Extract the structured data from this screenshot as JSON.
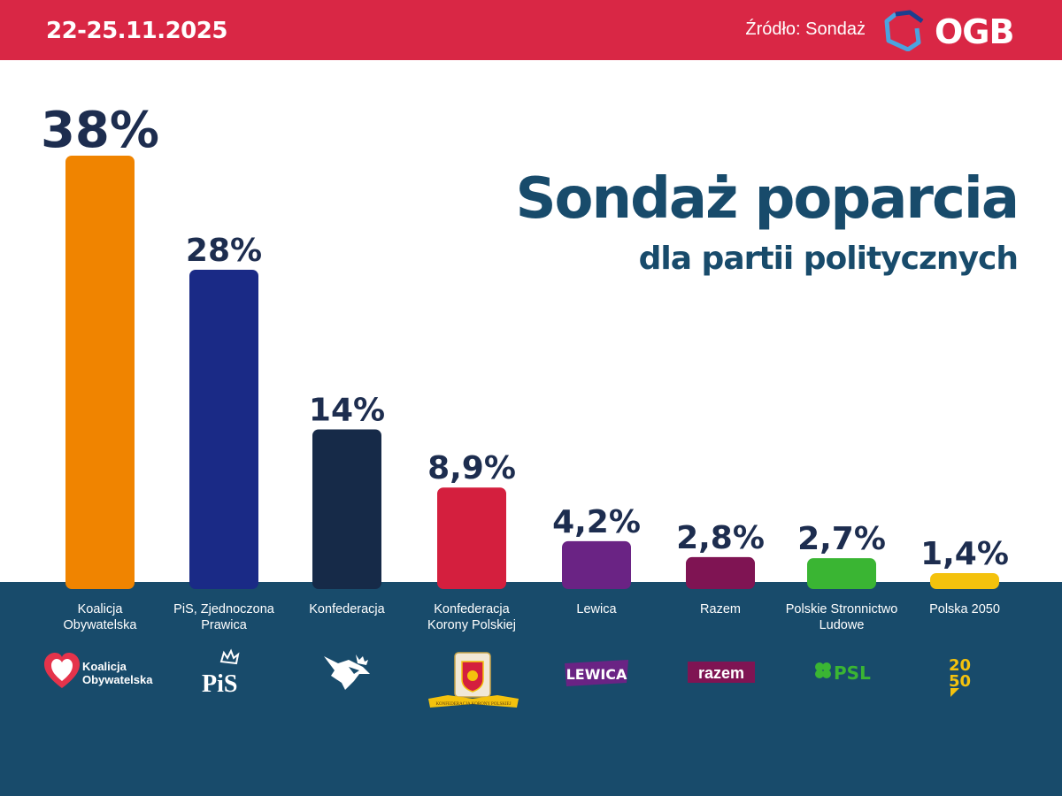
{
  "header": {
    "date": "22-25.11.2025",
    "source": "Źródło: Sondaż",
    "brand": "OGB"
  },
  "title": "Sondaż poparcia",
  "subtitle": "dla partii politycznych",
  "colors": {
    "header_bg": "#d92745",
    "footer_bg": "#184b6b",
    "title": "#184b6b",
    "value_text": "#1d2d4f"
  },
  "chart_data": {
    "type": "bar",
    "categories": [
      "Koalicja Obywatelska",
      "PiS, Zjednoczona Prawica",
      "Konfederacja",
      "Konfederacja Korony Polskiej",
      "Lewica",
      "Razem",
      "Polskie Stronnictwo Ludowe",
      "Polska 2050"
    ],
    "values": [
      38,
      28,
      14,
      8.9,
      4.2,
      2.8,
      2.7,
      1.4
    ],
    "value_labels": [
      "38%",
      "28%",
      "14%",
      "8,9%",
      "4,2%",
      "2,8%",
      "2,7%",
      "1,4%"
    ],
    "colors": [
      "#f08400",
      "#1a2a86",
      "#162a48",
      "#d41f3e",
      "#6a2384",
      "#7f1453",
      "#3ab533",
      "#f4c20d"
    ],
    "ylim": [
      0,
      38
    ],
    "grid": false,
    "legend": "none"
  },
  "logos": [
    {
      "icon": "heart-icon",
      "text": [
        "Koalicja",
        "Obywatelska"
      ]
    },
    {
      "icon": "pis-crown-icon",
      "text": "PiS"
    },
    {
      "icon": "eagle-icon"
    },
    {
      "icon": "coat-of-arms-icon",
      "text": "KONFEDERACJA KORONY POLSKIEJ"
    },
    {
      "icon": "lewica-logo",
      "text": "LEWICA"
    },
    {
      "icon": "razem-logo",
      "text": "razem"
    },
    {
      "icon": "clover-icon",
      "text": "PSL"
    },
    {
      "icon": "polska2050-logo",
      "text": [
        "20",
        "50"
      ]
    }
  ]
}
